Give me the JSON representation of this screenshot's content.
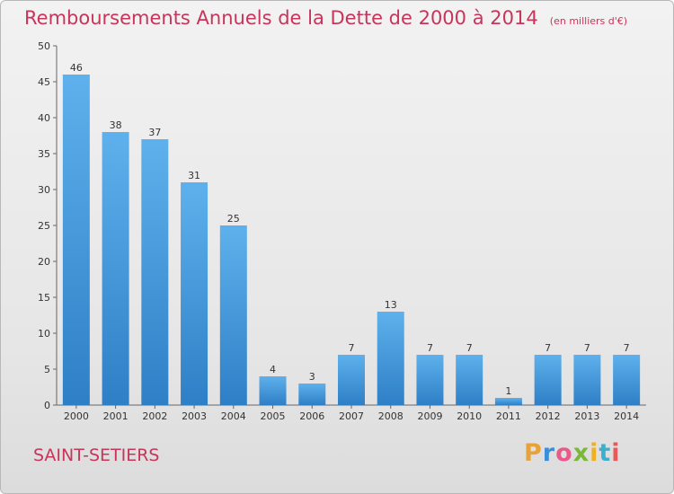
{
  "header": {
    "title": "Remboursements Annuels de la Dette de 2000 à 2014",
    "unit": "(en milliers d'€)"
  },
  "commune": "SAINT-SETIERS",
  "brand": {
    "letters": [
      "P",
      "r",
      "o",
      "x",
      "i",
      "t",
      "i"
    ],
    "colors": [
      "#e8a23a",
      "#3a8fd8",
      "#e85a8a",
      "#7ab83a",
      "#f0b020",
      "#3ab0d0",
      "#e85a5a"
    ]
  },
  "chart_data": {
    "type": "bar",
    "title": "Remboursements Annuels de la Dette de 2000 à 2014",
    "xlabel": "",
    "ylabel": "",
    "categories": [
      "2000",
      "2001",
      "2002",
      "2003",
      "2004",
      "2005",
      "2006",
      "2007",
      "2008",
      "2009",
      "2010",
      "2011",
      "2012",
      "2013",
      "2014"
    ],
    "values": [
      46,
      38,
      37,
      31,
      25,
      4,
      3,
      7,
      13,
      7,
      7,
      1,
      7,
      7,
      7
    ],
    "ylim": [
      0,
      50
    ],
    "yticks": [
      0,
      5,
      10,
      15,
      20,
      25,
      30,
      35,
      40,
      45,
      50
    ],
    "grid": false,
    "bar_color_top": "#5eb1ec",
    "bar_color_bottom": "#2e7fc6"
  }
}
